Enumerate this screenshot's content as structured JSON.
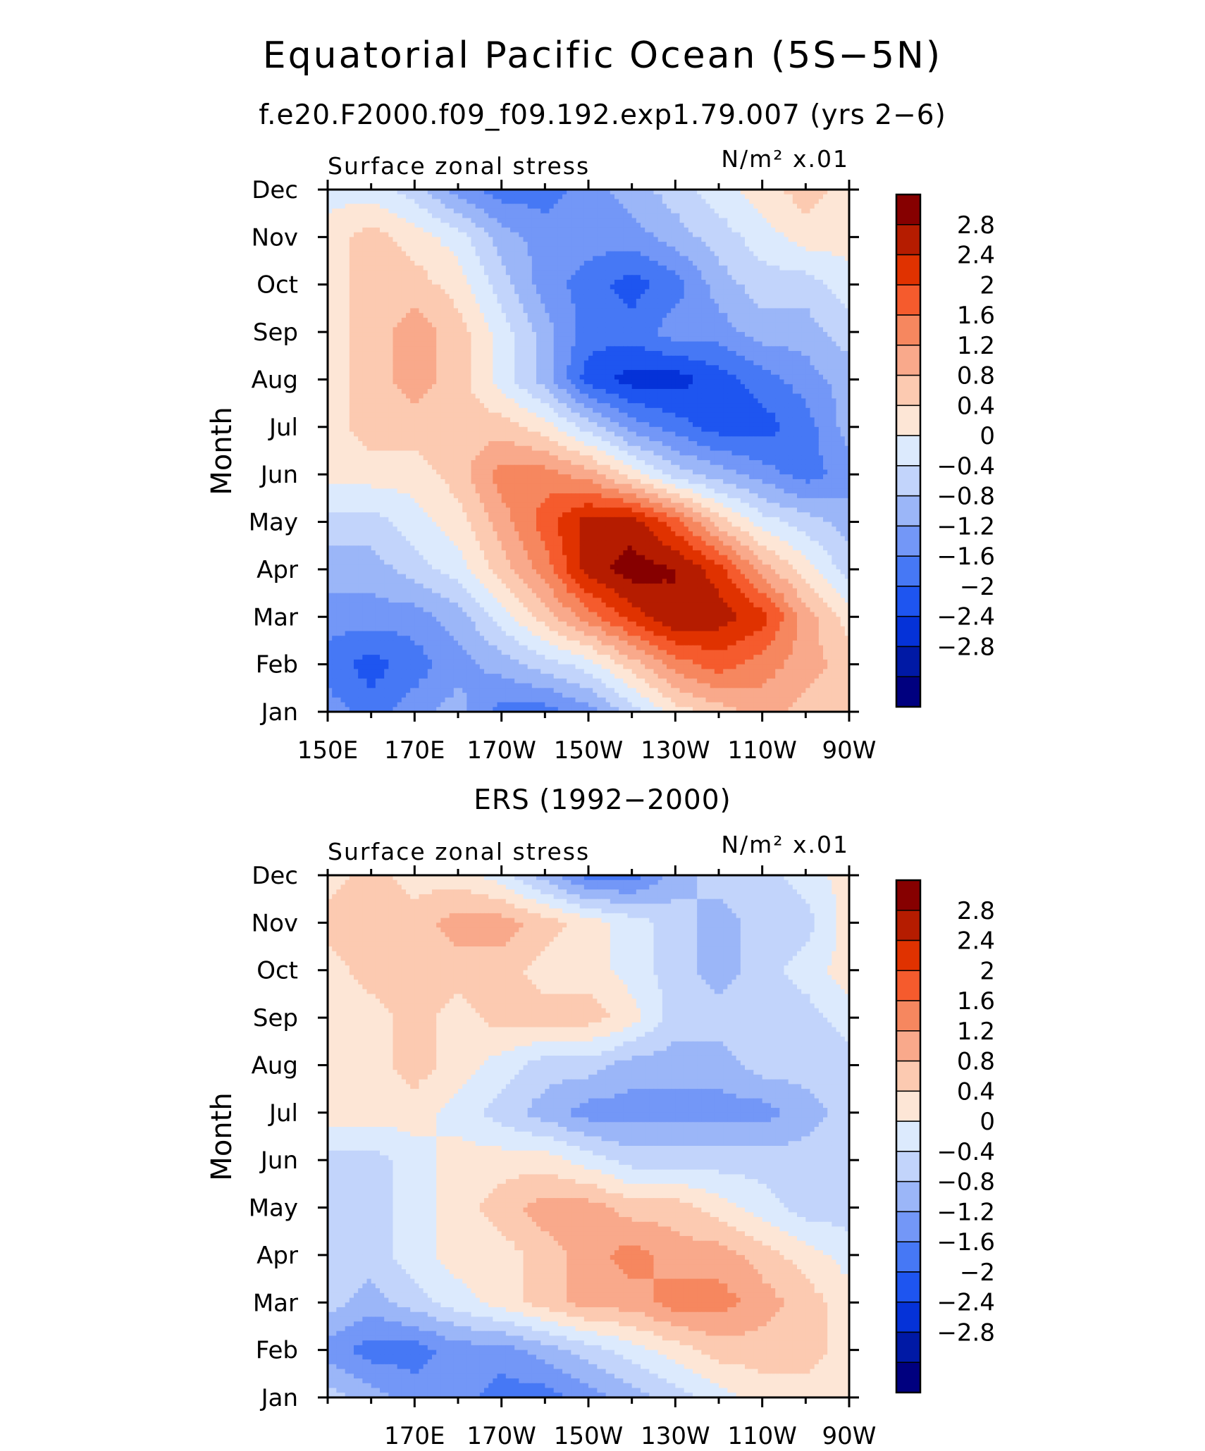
{
  "title": "Equatorial Pacific Ocean (5S−5N)",
  "colors": {
    "levels": [
      "#00007f",
      "#0019a5",
      "#0532d8",
      "#1e55f0",
      "#4678f5",
      "#7397f7",
      "#9bb6f8",
      "#c2d4fb",
      "#dceafd",
      "#fde6d6",
      "#fccab1",
      "#f9a98b",
      "#f6875f",
      "#f55b2d",
      "#e03200",
      "#b51c00",
      "#860000"
    ]
  },
  "chart_data": [
    {
      "type": "heatmap",
      "panel_title": "f.e20.F2000.f09_f09.192.exp1.79.007 (yrs 2−6)",
      "variable_label": "Surface zonal stress",
      "units_label": "N/m² x.01",
      "ylabel": "Month",
      "x_tick_labels": [
        "150E",
        "170E",
        "170W",
        "150W",
        "130W",
        "110W",
        "90W"
      ],
      "x_ticks_deg": [
        150,
        170,
        190,
        210,
        230,
        250,
        270
      ],
      "y_tick_labels": [
        "Jan",
        "Feb",
        "Mar",
        "Apr",
        "May",
        "Jun",
        "Jul",
        "Aug",
        "Sep",
        "Oct",
        "Nov",
        "Dec"
      ],
      "colorbar_levels": [
        "2.8",
        "2.4",
        "2",
        "1.6",
        "1.2",
        "0.8",
        "0.4",
        "0",
        "−0.4",
        "−0.8",
        "−1.2",
        "−1.6",
        "−2",
        "−2.4",
        "−2.8"
      ],
      "x": [
        150,
        160,
        170,
        180,
        190,
        200,
        210,
        220,
        230,
        240,
        250,
        260,
        270
      ],
      "y": [
        "Jan",
        "Feb",
        "Mar",
        "Apr",
        "May",
        "Jun",
        "Jul",
        "Aug",
        "Sep",
        "Oct",
        "Nov",
        "Dec"
      ],
      "z": [
        [
          -1.2,
          -1.6,
          -1.2,
          -0.8,
          -1.6,
          -1.6,
          -1.2,
          -0.4,
          0.4,
          0.8,
          1.2,
          0.8,
          0.8
        ],
        [
          -1.6,
          -2.0,
          -1.6,
          -1.2,
          -0.8,
          -0.4,
          0.0,
          0.8,
          1.6,
          2.0,
          1.6,
          1.2,
          0.8
        ],
        [
          -1.2,
          -1.2,
          -1.2,
          -0.8,
          0.0,
          0.8,
          1.6,
          2.4,
          3.0,
          2.8,
          2.4,
          1.2,
          0.4
        ],
        [
          -0.8,
          -0.8,
          -0.4,
          0.0,
          0.8,
          1.6,
          2.8,
          3.2,
          3.0,
          2.4,
          1.2,
          0.4,
          -0.4
        ],
        [
          -0.4,
          -0.4,
          0.0,
          0.4,
          1.2,
          2.0,
          2.8,
          2.8,
          2.0,
          0.8,
          0.0,
          -0.4,
          -0.8
        ],
        [
          0.4,
          0.4,
          0.4,
          0.8,
          1.6,
          1.6,
          1.2,
          0.4,
          -0.4,
          -0.8,
          -1.2,
          -1.6,
          -1.2
        ],
        [
          0.4,
          0.8,
          0.8,
          0.8,
          0.8,
          0.4,
          -0.4,
          -1.2,
          -1.6,
          -2.0,
          -2.0,
          -1.6,
          -0.8
        ],
        [
          0.4,
          0.8,
          1.2,
          0.8,
          0.0,
          -0.8,
          -2.0,
          -2.4,
          -2.4,
          -2.0,
          -1.6,
          -1.2,
          -0.8
        ],
        [
          0.4,
          0.8,
          1.2,
          0.8,
          0.0,
          -0.8,
          -1.6,
          -1.6,
          -1.2,
          -1.2,
          -0.8,
          -0.8,
          -0.4
        ],
        [
          0.4,
          0.8,
          0.8,
          0.4,
          -0.4,
          -1.2,
          -1.6,
          -2.0,
          -1.6,
          -0.8,
          -0.4,
          -0.4,
          0.0
        ],
        [
          0.4,
          0.8,
          0.4,
          0.0,
          -0.8,
          -1.2,
          -1.2,
          -1.2,
          -0.8,
          -0.4,
          0.0,
          0.4,
          0.4
        ],
        [
          0.0,
          0.0,
          -0.4,
          -1.2,
          -1.6,
          -1.6,
          -1.2,
          -0.8,
          -0.4,
          0.0,
          0.4,
          0.8,
          0.4
        ]
      ],
      "zlim": [
        -3.2,
        3.2
      ]
    },
    {
      "type": "heatmap",
      "panel_title": "ERS (1992−2000)",
      "variable_label": "Surface zonal stress",
      "units_label": "N/m² x.01",
      "ylabel": "Month",
      "x_tick_labels": [
        "170E",
        "170W",
        "150W",
        "130W",
        "110W",
        "90W"
      ],
      "x_ticks_deg": [
        170,
        190,
        210,
        230,
        250,
        270
      ],
      "y_tick_labels": [
        "Jan",
        "Feb",
        "Mar",
        "Apr",
        "May",
        "Jun",
        "Jul",
        "Aug",
        "Sep",
        "Oct",
        "Nov",
        "Dec"
      ],
      "colorbar_levels": [
        "2.8",
        "2.4",
        "2",
        "1.6",
        "1.2",
        "0.8",
        "0.4",
        "0",
        "−0.4",
        "−0.8",
        "−1.2",
        "−1.6",
        "−2",
        "−2.4",
        "−2.8"
      ],
      "x": [
        150,
        160,
        170,
        180,
        190,
        200,
        210,
        220,
        230,
        240,
        250,
        260,
        270
      ],
      "y": [
        "Jan",
        "Feb",
        "Mar",
        "Apr",
        "May",
        "Jun",
        "Jul",
        "Aug",
        "Sep",
        "Oct",
        "Nov",
        "Dec"
      ],
      "z": [
        [
          -0.4,
          -0.8,
          -1.2,
          -1.2,
          -1.6,
          -1.6,
          -1.2,
          -0.8,
          -0.4,
          0.0,
          0.4,
          0.4,
          0.4
        ],
        [
          -1.2,
          -1.6,
          -1.6,
          -1.2,
          -1.2,
          -0.8,
          -0.4,
          0.0,
          0.4,
          0.8,
          0.8,
          0.8,
          0.4
        ],
        [
          -0.4,
          -0.8,
          -0.4,
          0.0,
          0.4,
          0.8,
          1.2,
          1.2,
          1.6,
          1.6,
          1.2,
          0.8,
          0.4
        ],
        [
          -0.4,
          -0.4,
          0.0,
          0.4,
          0.4,
          0.8,
          1.2,
          1.6,
          1.2,
          1.2,
          0.8,
          0.4,
          0.0
        ],
        [
          -0.4,
          -0.4,
          0.0,
          0.4,
          0.8,
          1.2,
          1.2,
          0.8,
          0.8,
          0.4,
          0.0,
          -0.4,
          -0.4
        ],
        [
          -0.4,
          -0.4,
          0.0,
          0.4,
          0.4,
          0.4,
          0.0,
          -0.4,
          -0.4,
          -0.4,
          -0.4,
          -0.4,
          -0.4
        ],
        [
          0.4,
          0.4,
          0.4,
          0.0,
          -0.4,
          -0.8,
          -1.2,
          -1.2,
          -1.2,
          -1.2,
          -1.2,
          -0.8,
          -0.4
        ],
        [
          0.4,
          0.4,
          0.8,
          0.4,
          0.0,
          -0.4,
          -0.4,
          -0.8,
          -0.8,
          -0.8,
          -0.4,
          -0.4,
          -0.4
        ],
        [
          0.4,
          0.4,
          0.8,
          0.4,
          0.8,
          0.8,
          0.8,
          0.4,
          -0.4,
          -0.4,
          -0.4,
          -0.4,
          0.0
        ],
        [
          0.4,
          0.8,
          0.8,
          0.8,
          0.8,
          0.4,
          0.4,
          0.0,
          -0.4,
          -0.8,
          -0.4,
          0.0,
          0.4
        ],
        [
          0.8,
          0.8,
          0.8,
          1.2,
          1.2,
          0.8,
          0.4,
          0.0,
          -0.4,
          -0.8,
          -0.4,
          -0.4,
          0.4
        ],
        [
          0.4,
          0.8,
          0.4,
          0.4,
          0.0,
          -0.8,
          -1.6,
          -1.6,
          -0.8,
          -0.4,
          -0.4,
          0.0,
          0.4
        ]
      ],
      "zlim": [
        -3.2,
        3.2
      ]
    }
  ]
}
